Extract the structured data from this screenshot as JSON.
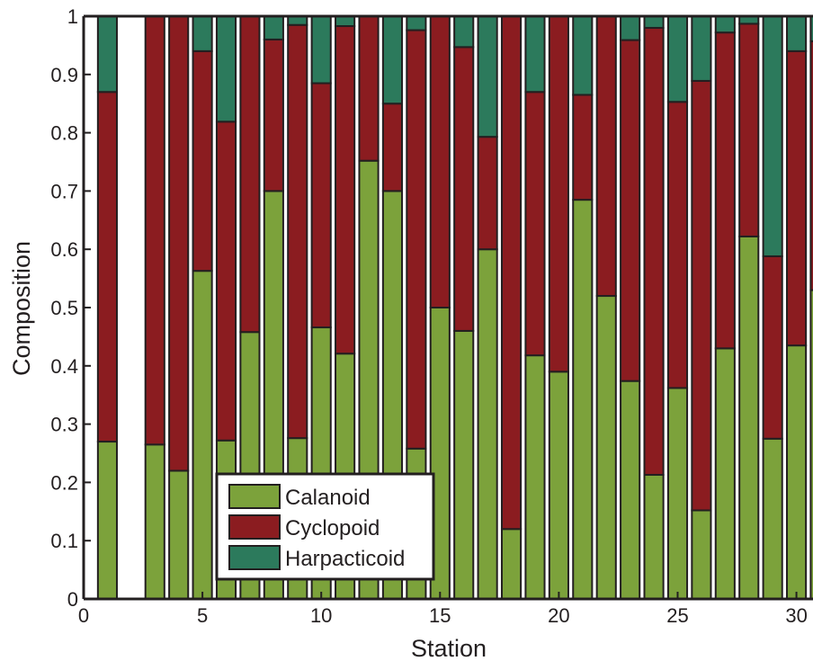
{
  "chart_data": {
    "type": "bar",
    "stacked": true,
    "xlabel": "Station",
    "ylabel": "Composition",
    "xlim": [
      0,
      31
    ],
    "ylim": [
      0,
      1
    ],
    "xticks": [
      0,
      5,
      10,
      15,
      20,
      25,
      30
    ],
    "yticks": [
      0,
      0.1,
      0.2,
      0.3,
      0.4,
      0.5,
      0.6,
      0.7,
      0.8,
      0.9,
      1
    ],
    "ytick_labels": [
      "0",
      "0.1",
      "0.2",
      "0.3",
      "0.4",
      "0.5",
      "0.6",
      "0.7",
      "0.8",
      "0.9",
      "1"
    ],
    "xtick_labels": [
      "0",
      "5",
      "10",
      "15",
      "20",
      "25",
      "30"
    ],
    "categories": [
      1,
      2,
      3,
      4,
      5,
      6,
      7,
      8,
      9,
      10,
      11,
      12,
      13,
      14,
      15,
      16,
      17,
      18,
      19,
      20,
      21,
      22,
      23,
      24,
      25,
      26,
      27,
      28,
      29,
      30,
      31
    ],
    "legend_position": "lower-left",
    "grid": false,
    "series": [
      {
        "name": "Calanoid",
        "color": "#7ca23b",
        "values": [
          0.27,
          0,
          0.265,
          0.22,
          0.563,
          0.272,
          0.458,
          0.7,
          0.276,
          0.466,
          0.421,
          0.752,
          0.7,
          0.258,
          0.5,
          0.46,
          0.6,
          0.12,
          0.418,
          0.39,
          0.685,
          0.52,
          0.374,
          0.213,
          0.362,
          0.152,
          0.43,
          0.622,
          0.275,
          0.435,
          0.53
        ]
      },
      {
        "name": "Cyclopoid",
        "color": "#8b1c20",
        "values": [
          0.6,
          0,
          0.735,
          0.78,
          0.377,
          0.547,
          0.542,
          0.26,
          0.709,
          0.419,
          0.562,
          0.248,
          0.15,
          0.718,
          0.5,
          0.487,
          0.193,
          0.88,
          0.452,
          0.61,
          0.18,
          0.48,
          0.585,
          0.767,
          0.491,
          0.737,
          0.542,
          0.365,
          0.313,
          0.505,
          0.427
        ]
      },
      {
        "name": "Harpacticoid",
        "color": "#2c7a5c",
        "values": [
          0.13,
          0,
          0,
          0,
          0.06,
          0.181,
          0,
          0.04,
          0.015,
          0.115,
          0.017,
          0,
          0.15,
          0.024,
          0,
          0.053,
          0.207,
          0,
          0.13,
          0,
          0.135,
          0,
          0.041,
          0.02,
          0.147,
          0.111,
          0.028,
          0.013,
          0.412,
          0.06,
          0.043
        ]
      }
    ]
  }
}
